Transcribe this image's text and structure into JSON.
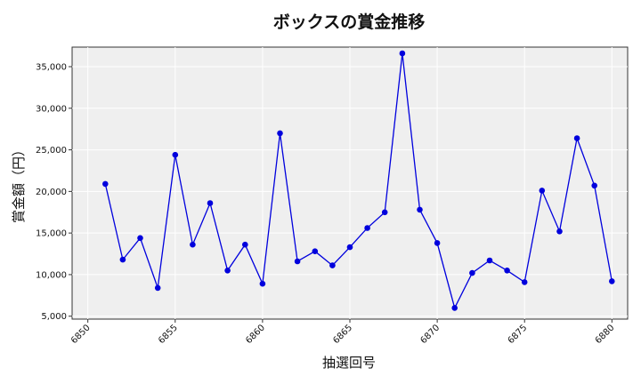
{
  "chart_data": {
    "type": "line",
    "title": "ボックスの賞金推移",
    "xlabel": "抽選回号",
    "ylabel": "賞金額（円）",
    "xlim": [
      6849.1,
      6880.9
    ],
    "ylim": [
      4650,
      37350
    ],
    "xticks": [
      6850,
      6855,
      6860,
      6865,
      6870,
      6875,
      6880
    ],
    "yticks": [
      5000,
      10000,
      15000,
      20000,
      25000,
      30000,
      35000
    ],
    "ytick_labels": [
      "5,000",
      "10,000",
      "15,000",
      "20,000",
      "25,000",
      "30,000",
      "35,000"
    ],
    "grid": true,
    "color": "#0000dd",
    "series": [
      {
        "x": [
          6851,
          6852,
          6853,
          6854,
          6855,
          6856,
          6857,
          6858,
          6859,
          6860,
          6861,
          6862,
          6863,
          6864,
          6865,
          6866,
          6867,
          6868,
          6869,
          6870,
          6871,
          6872,
          6873,
          6874,
          6875,
          6876,
          6877,
          6878,
          6879,
          6880
        ],
        "values": [
          20900,
          11800,
          14400,
          8400,
          24400,
          13600,
          18600,
          10500,
          13600,
          8900,
          27000,
          11600,
          12800,
          11100,
          13300,
          15600,
          17500,
          36600,
          17800,
          13800,
          6000,
          10200,
          11700,
          10500,
          9100,
          20100,
          15200,
          26400,
          20700,
          9200
        ]
      }
    ]
  }
}
